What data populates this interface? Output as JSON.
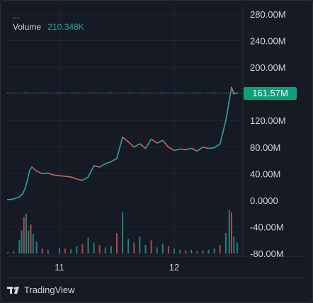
{
  "legend": {
    "dots": "...",
    "volume_label": "Volume",
    "volume_value": "210.348K"
  },
  "brand": {
    "name": "TradingView",
    "icon": "tradingview-logo-icon"
  },
  "last_price_label": "161.57M",
  "colors": {
    "up": "#26a69a",
    "down": "#ef5350",
    "grid": "#232733",
    "text": "#d1d4dc",
    "background": "#161a25",
    "price_tag": "#0f9f7c"
  },
  "chart_data": {
    "type": "line",
    "title": "",
    "xlabel": "",
    "ylabel": "",
    "y_ticks": [
      "280.00M",
      "240.00M",
      "200.00M",
      "160.00M",
      "120.00M",
      "80.00M",
      "40.00M",
      "0.0000",
      "-40.00M",
      "-80.00M"
    ],
    "ylim": [
      -80,
      280
    ],
    "y_unit": "M",
    "x_ticks": [
      "11",
      "12"
    ],
    "grid": true,
    "last_price": 161.57,
    "series": [
      {
        "points": [
          [
            10.4,
            0
          ],
          [
            10.45,
            0
          ],
          [
            10.5,
            0
          ],
          [
            10.55,
            1
          ],
          [
            10.6,
            2
          ],
          [
            10.65,
            5
          ],
          [
            10.68,
            10
          ],
          [
            10.7,
            18
          ],
          [
            10.72,
            30
          ],
          [
            10.74,
            45
          ],
          [
            10.76,
            50
          ],
          [
            10.8,
            44
          ],
          [
            10.85,
            40
          ],
          [
            10.9,
            41
          ],
          [
            10.95,
            38
          ],
          [
            11.0,
            37
          ],
          [
            11.05,
            36
          ],
          [
            11.1,
            35
          ],
          [
            11.15,
            32
          ],
          [
            11.2,
            30
          ],
          [
            11.25,
            35
          ],
          [
            11.3,
            52
          ],
          [
            11.35,
            50
          ],
          [
            11.4,
            55
          ],
          [
            11.45,
            58
          ],
          [
            11.5,
            63
          ],
          [
            11.55,
            95
          ],
          [
            11.6,
            88
          ],
          [
            11.65,
            80
          ],
          [
            11.7,
            85
          ],
          [
            11.75,
            78
          ],
          [
            11.8,
            92
          ],
          [
            11.85,
            86
          ],
          [
            11.9,
            90
          ],
          [
            11.95,
            80
          ],
          [
            12.0,
            75
          ],
          [
            12.05,
            77
          ],
          [
            12.1,
            76
          ],
          [
            12.15,
            78
          ],
          [
            12.2,
            74
          ],
          [
            12.25,
            80
          ],
          [
            12.3,
            78
          ],
          [
            12.35,
            79
          ],
          [
            12.4,
            85
          ],
          [
            12.45,
            120
          ],
          [
            12.48,
            150
          ],
          [
            12.5,
            170
          ],
          [
            12.52,
            160
          ],
          [
            12.55,
            161.57
          ]
        ]
      }
    ],
    "volume": [
      [
        10.55,
        2
      ],
      [
        10.6,
        4
      ],
      [
        10.65,
        22
      ],
      [
        10.67,
        38
      ],
      [
        10.69,
        60
      ],
      [
        10.71,
        66
      ],
      [
        10.73,
        38
      ],
      [
        10.75,
        48
      ],
      [
        10.77,
        32
      ],
      [
        10.8,
        20
      ],
      [
        10.85,
        8
      ],
      [
        10.9,
        6
      ],
      [
        11.0,
        9
      ],
      [
        11.05,
        8
      ],
      [
        11.1,
        7
      ],
      [
        11.15,
        12
      ],
      [
        11.2,
        15
      ],
      [
        11.25,
        26
      ],
      [
        11.3,
        18
      ],
      [
        11.35,
        14
      ],
      [
        11.4,
        10
      ],
      [
        11.45,
        12
      ],
      [
        11.5,
        34
      ],
      [
        11.55,
        68
      ],
      [
        11.6,
        24
      ],
      [
        11.65,
        18
      ],
      [
        11.7,
        28
      ],
      [
        11.75,
        14
      ],
      [
        11.8,
        22
      ],
      [
        11.85,
        10
      ],
      [
        11.9,
        16
      ],
      [
        11.95,
        12
      ],
      [
        12.0,
        8
      ],
      [
        12.05,
        6
      ],
      [
        12.1,
        5
      ],
      [
        12.15,
        6
      ],
      [
        12.2,
        4
      ],
      [
        12.25,
        5
      ],
      [
        12.3,
        6
      ],
      [
        12.35,
        8
      ],
      [
        12.4,
        14
      ],
      [
        12.45,
        34
      ],
      [
        12.48,
        72
      ],
      [
        12.5,
        68
      ],
      [
        12.52,
        28
      ],
      [
        12.55,
        18
      ]
    ]
  }
}
